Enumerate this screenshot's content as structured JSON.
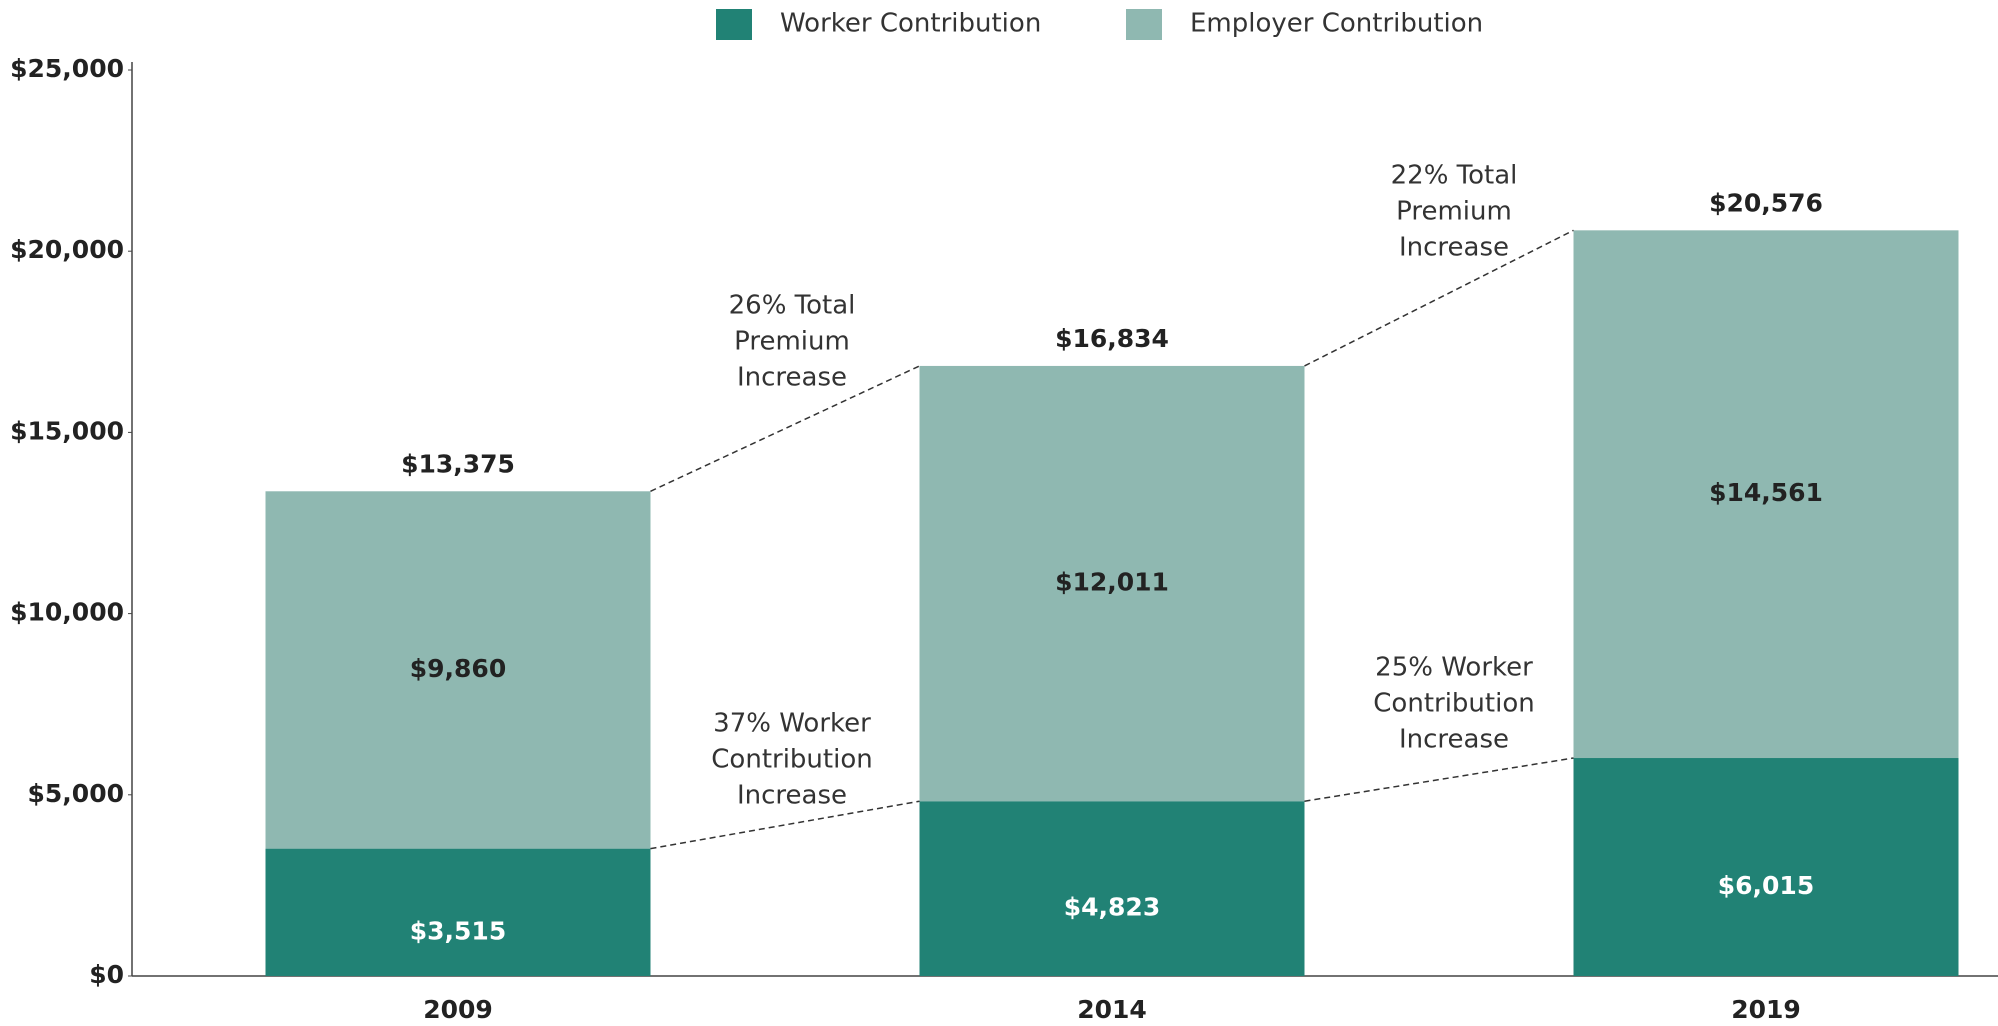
{
  "chart_data": {
    "type": "stacked_bar",
    "categories": [
      "2009",
      "2014",
      "2019"
    ],
    "series": [
      {
        "name": "Worker Contribution",
        "color": "#218275",
        "values": [
          3515,
          4823,
          6015
        ],
        "value_labels": [
          "$3,515",
          "$4,823",
          "$6,015"
        ]
      },
      {
        "name": "Employer Contribution",
        "color": "#8fb8b1",
        "values": [
          9860,
          12011,
          14561
        ],
        "value_labels": [
          "$9,860",
          "$12,011",
          "$14,561"
        ]
      }
    ],
    "totals": [
      13375,
      16834,
      20576
    ],
    "total_labels": [
      "$13,375",
      "$16,834",
      "$20,576"
    ],
    "annotations": [
      {
        "text": [
          "26% Total",
          "Premium",
          "Increase"
        ]
      },
      {
        "text": [
          "22% Total",
          "Premium",
          "Increase"
        ]
      },
      {
        "text": [
          "37% Worker",
          "Contribution",
          "Increase"
        ]
      },
      {
        "text": [
          "25% Worker",
          "Contribution",
          "Increase"
        ]
      }
    ],
    "ylim": [
      0,
      25000
    ],
    "yticks": [
      {
        "value": 0,
        "label": "$0"
      },
      {
        "value": 5000,
        "label": "$5,000"
      },
      {
        "value": 10000,
        "label": "$10,000"
      },
      {
        "value": 15000,
        "label": "$15,000"
      },
      {
        "value": 20000,
        "label": "$20,000"
      },
      {
        "value": 25000,
        "label": "$25,000"
      }
    ],
    "legend": "top"
  }
}
